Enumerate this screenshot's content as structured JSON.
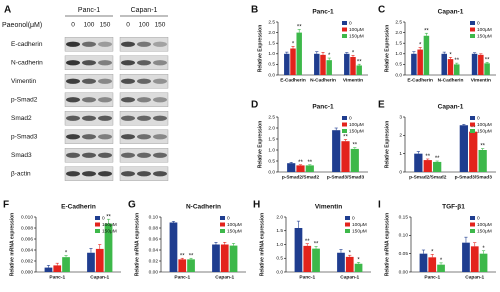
{
  "blot": {
    "panel": "A",
    "groups": [
      "Panc-1",
      "Capan-1"
    ],
    "treatment_label": "Paeonol(μM)",
    "lanes": [
      "0",
      "100",
      "150"
    ],
    "proteins": [
      "E-cadherin",
      "N-cadherin",
      "Vimentin",
      "p-Smad2",
      "Smad2",
      "p-Smad3",
      "Smad3",
      "β-actin"
    ]
  },
  "chart_data": [
    {
      "type": "bar",
      "panel": "B",
      "title": "Panc-1",
      "ylabel": "Relative Expression",
      "categories": [
        "E-Cadherin",
        "N-Cadherin",
        "Vimentin"
      ],
      "series": [
        {
          "name": "0",
          "color": "#1f3d8f",
          "values": [
            1.0,
            1.0,
            1.0
          ],
          "errors": [
            0.08,
            0.1,
            0.06
          ],
          "stars": [
            null,
            null,
            null
          ]
        },
        {
          "name": "100μM",
          "color": "#e3231c",
          "values": [
            1.25,
            0.95,
            0.85
          ],
          "errors": [
            0.1,
            0.12,
            0.08
          ],
          "stars": [
            "*",
            null,
            "*"
          ]
        },
        {
          "name": "150μM",
          "color": "#3db84a",
          "values": [
            2.0,
            0.7,
            0.45
          ],
          "errors": [
            0.15,
            0.1,
            0.06
          ],
          "stars": [
            "**",
            "*",
            "**"
          ]
        }
      ],
      "ylim": [
        0,
        2.5
      ],
      "yticks": [
        {
          "value": 0,
          "label": "0.0"
        },
        0.5,
        {
          "value": 1,
          "label": "1.0"
        },
        1.5,
        {
          "value": 2,
          "label": "2.0"
        },
        2.5
      ],
      "legend": "upper right"
    },
    {
      "type": "bar",
      "panel": "C",
      "title": "Capan-1",
      "ylabel": "Relative Expression",
      "categories": [
        "E-Cadherin",
        "N-Cadherin",
        "Vimentin"
      ],
      "series": [
        {
          "name": "0",
          "color": "#1f3d8f",
          "values": [
            1.0,
            1.0,
            1.0
          ],
          "errors": [
            0.1,
            0.08,
            0.05
          ],
          "stars": [
            null,
            null,
            null
          ]
        },
        {
          "name": "100μM",
          "color": "#e3231c",
          "values": [
            1.2,
            0.75,
            0.95
          ],
          "errors": [
            0.1,
            0.08,
            0.05
          ],
          "stars": [
            "*",
            "*",
            null
          ]
        },
        {
          "name": "150μM",
          "color": "#3db84a",
          "values": [
            1.85,
            0.5,
            0.55
          ],
          "errors": [
            0.12,
            0.06,
            0.05
          ],
          "stars": [
            "**",
            "**",
            "**"
          ]
        }
      ],
      "ylim": [
        0,
        2.5
      ],
      "yticks": [
        {
          "value": 0,
          "label": "0.0"
        },
        0.5,
        {
          "value": 1,
          "label": "1.0"
        },
        1.5,
        {
          "value": 2,
          "label": "2.0"
        },
        2.5
      ],
      "legend": "upper right"
    },
    {
      "type": "bar",
      "panel": "D",
      "title": "Panc-1",
      "ylabel": "Relative Expression",
      "categories": [
        "p-Smad2/Smad2",
        "p-Smad3/Smad3"
      ],
      "series": [
        {
          "name": "0",
          "color": "#1f3d8f",
          "values": [
            0.4,
            1.9
          ],
          "errors": [
            0.04,
            0.1
          ],
          "stars": [
            null,
            null
          ]
        },
        {
          "name": "100μM",
          "color": "#e3231c",
          "values": [
            0.3,
            1.4
          ],
          "errors": [
            0.03,
            0.08
          ],
          "stars": [
            "**",
            "**"
          ]
        },
        {
          "name": "150μM",
          "color": "#3db84a",
          "values": [
            0.3,
            1.05
          ],
          "errors": [
            0.03,
            0.06
          ],
          "stars": [
            "**",
            "**"
          ]
        }
      ],
      "ylim": [
        0,
        2.5
      ],
      "yticks": [
        {
          "value": 0,
          "label": "0.0"
        },
        0.5,
        {
          "value": 1,
          "label": "1.0"
        },
        1.5,
        {
          "value": 2,
          "label": "2.0"
        },
        2.5
      ],
      "legend": "upper right"
    },
    {
      "type": "bar",
      "panel": "E",
      "title": "Capan-1",
      "ylabel": "Relative Expression",
      "categories": [
        "p-Smad2/Smad2",
        "p-Smad3/Smad3"
      ],
      "series": [
        {
          "name": "0",
          "color": "#1f3d8f",
          "values": [
            1.0,
            2.55
          ],
          "errors": [
            0.12,
            0.05
          ],
          "stars": [
            null,
            null
          ]
        },
        {
          "name": "100μM",
          "color": "#e3231c",
          "values": [
            0.65,
            2.2
          ],
          "errors": [
            0.06,
            0.08
          ],
          "stars": [
            "**",
            "**"
          ]
        },
        {
          "name": "150μM",
          "color": "#3db84a",
          "values": [
            0.55,
            1.2
          ],
          "errors": [
            0.05,
            0.08
          ],
          "stars": [
            "**",
            "**"
          ]
        }
      ],
      "ylim": [
        0,
        3
      ],
      "yticks": [
        0,
        1,
        2,
        3
      ],
      "legend": "upper right"
    },
    {
      "type": "bar",
      "panel": "F",
      "title": "E-Cadherin",
      "ylabel": "Relative mRNA expression",
      "categories": [
        "Panc-1",
        "Capan-1"
      ],
      "series": [
        {
          "name": "0",
          "color": "#1f3d8f",
          "values": [
            0.0008,
            0.0035
          ],
          "errors": [
            0.0004,
            0.0008
          ],
          "stars": [
            null,
            null
          ]
        },
        {
          "name": "100μM",
          "color": "#e3231c",
          "values": [
            0.0012,
            0.0042
          ],
          "errors": [
            0.0004,
            0.0008
          ],
          "stars": [
            null,
            null
          ]
        },
        {
          "name": "150μM",
          "color": "#3db84a",
          "values": [
            0.0027,
            0.0088
          ],
          "errors": [
            0.0003,
            0.0008
          ],
          "stars": [
            "*",
            "**"
          ]
        }
      ],
      "ylim": [
        0,
        0.01
      ],
      "yticks": [
        {
          "value": 0,
          "label": "0.000"
        },
        0.002,
        0.004,
        0.006,
        0.008,
        {
          "value": 0.01,
          "label": "0.010"
        }
      ],
      "legend": "upper right"
    },
    {
      "type": "bar",
      "panel": "G",
      "title": "N-Cadherin",
      "ylabel": "Relative mRNA expression",
      "categories": [
        "Panc-1",
        "Capan-1"
      ],
      "series": [
        {
          "name": "0",
          "color": "#1f3d8f",
          "values": [
            0.09,
            0.05
          ],
          "errors": [
            0.002,
            0.004
          ],
          "stars": [
            null,
            null
          ]
        },
        {
          "name": "100μM",
          "color": "#e3231c",
          "values": [
            0.023,
            0.05
          ],
          "errors": [
            0.002,
            0.004
          ],
          "stars": [
            "**",
            null
          ]
        },
        {
          "name": "150μM",
          "color": "#3db84a",
          "values": [
            0.023,
            0.048
          ],
          "errors": [
            0.002,
            0.004
          ],
          "stars": [
            "**",
            null
          ]
        }
      ],
      "ylim": [
        0,
        0.1
      ],
      "yticks": [
        {
          "value": 0,
          "label": "0.00"
        },
        0.02,
        0.04,
        0.06,
        0.08,
        {
          "value": 0.1,
          "label": "0.10"
        }
      ],
      "legend": "upper right"
    },
    {
      "type": "bar",
      "panel": "H",
      "title": "Vimentin",
      "ylabel": "Relative mRNA expression",
      "categories": [
        "Panc-1",
        "Capan-1"
      ],
      "series": [
        {
          "name": "0",
          "color": "#1f3d8f",
          "values": [
            1.6,
            0.7
          ],
          "errors": [
            0.25,
            0.12
          ],
          "stars": [
            null,
            null
          ]
        },
        {
          "name": "100μM",
          "color": "#e3231c",
          "values": [
            0.95,
            0.55
          ],
          "errors": [
            0.08,
            0.06
          ],
          "stars": [
            "**",
            "*"
          ]
        },
        {
          "name": "150μM",
          "color": "#3db84a",
          "values": [
            0.85,
            0.3
          ],
          "errors": [
            0.08,
            0.05
          ],
          "stars": [
            "**",
            "*"
          ]
        }
      ],
      "ylim": [
        0,
        2
      ],
      "yticks": [
        {
          "value": 0,
          "label": "0.0"
        },
        0.5,
        {
          "value": 1,
          "label": "1.0"
        },
        1.5,
        {
          "value": 2,
          "label": "2.0"
        }
      ],
      "legend": "upper right"
    },
    {
      "type": "bar",
      "panel": "I",
      "title": "TGF-β1",
      "ylabel": "Relative mRNA expression",
      "categories": [
        "Panc-1",
        "Capan-1"
      ],
      "series": [
        {
          "name": "0",
          "color": "#1f3d8f",
          "values": [
            0.05,
            0.08
          ],
          "errors": [
            0.01,
            0.015
          ],
          "stars": [
            null,
            null
          ]
        },
        {
          "name": "100μM",
          "color": "#e3231c",
          "values": [
            0.04,
            0.07
          ],
          "errors": [
            0.008,
            0.01
          ],
          "stars": [
            "*",
            null
          ]
        },
        {
          "name": "150μM",
          "color": "#3db84a",
          "values": [
            0.02,
            0.05
          ],
          "errors": [
            0.005,
            0.008
          ],
          "stars": [
            "*",
            "*"
          ]
        }
      ],
      "ylim": [
        0,
        0.15
      ],
      "yticks": [
        {
          "value": 0,
          "label": "0.00"
        },
        0.05,
        {
          "value": 0.1,
          "label": "0.10"
        },
        0.15
      ],
      "legend": "upper right"
    }
  ]
}
